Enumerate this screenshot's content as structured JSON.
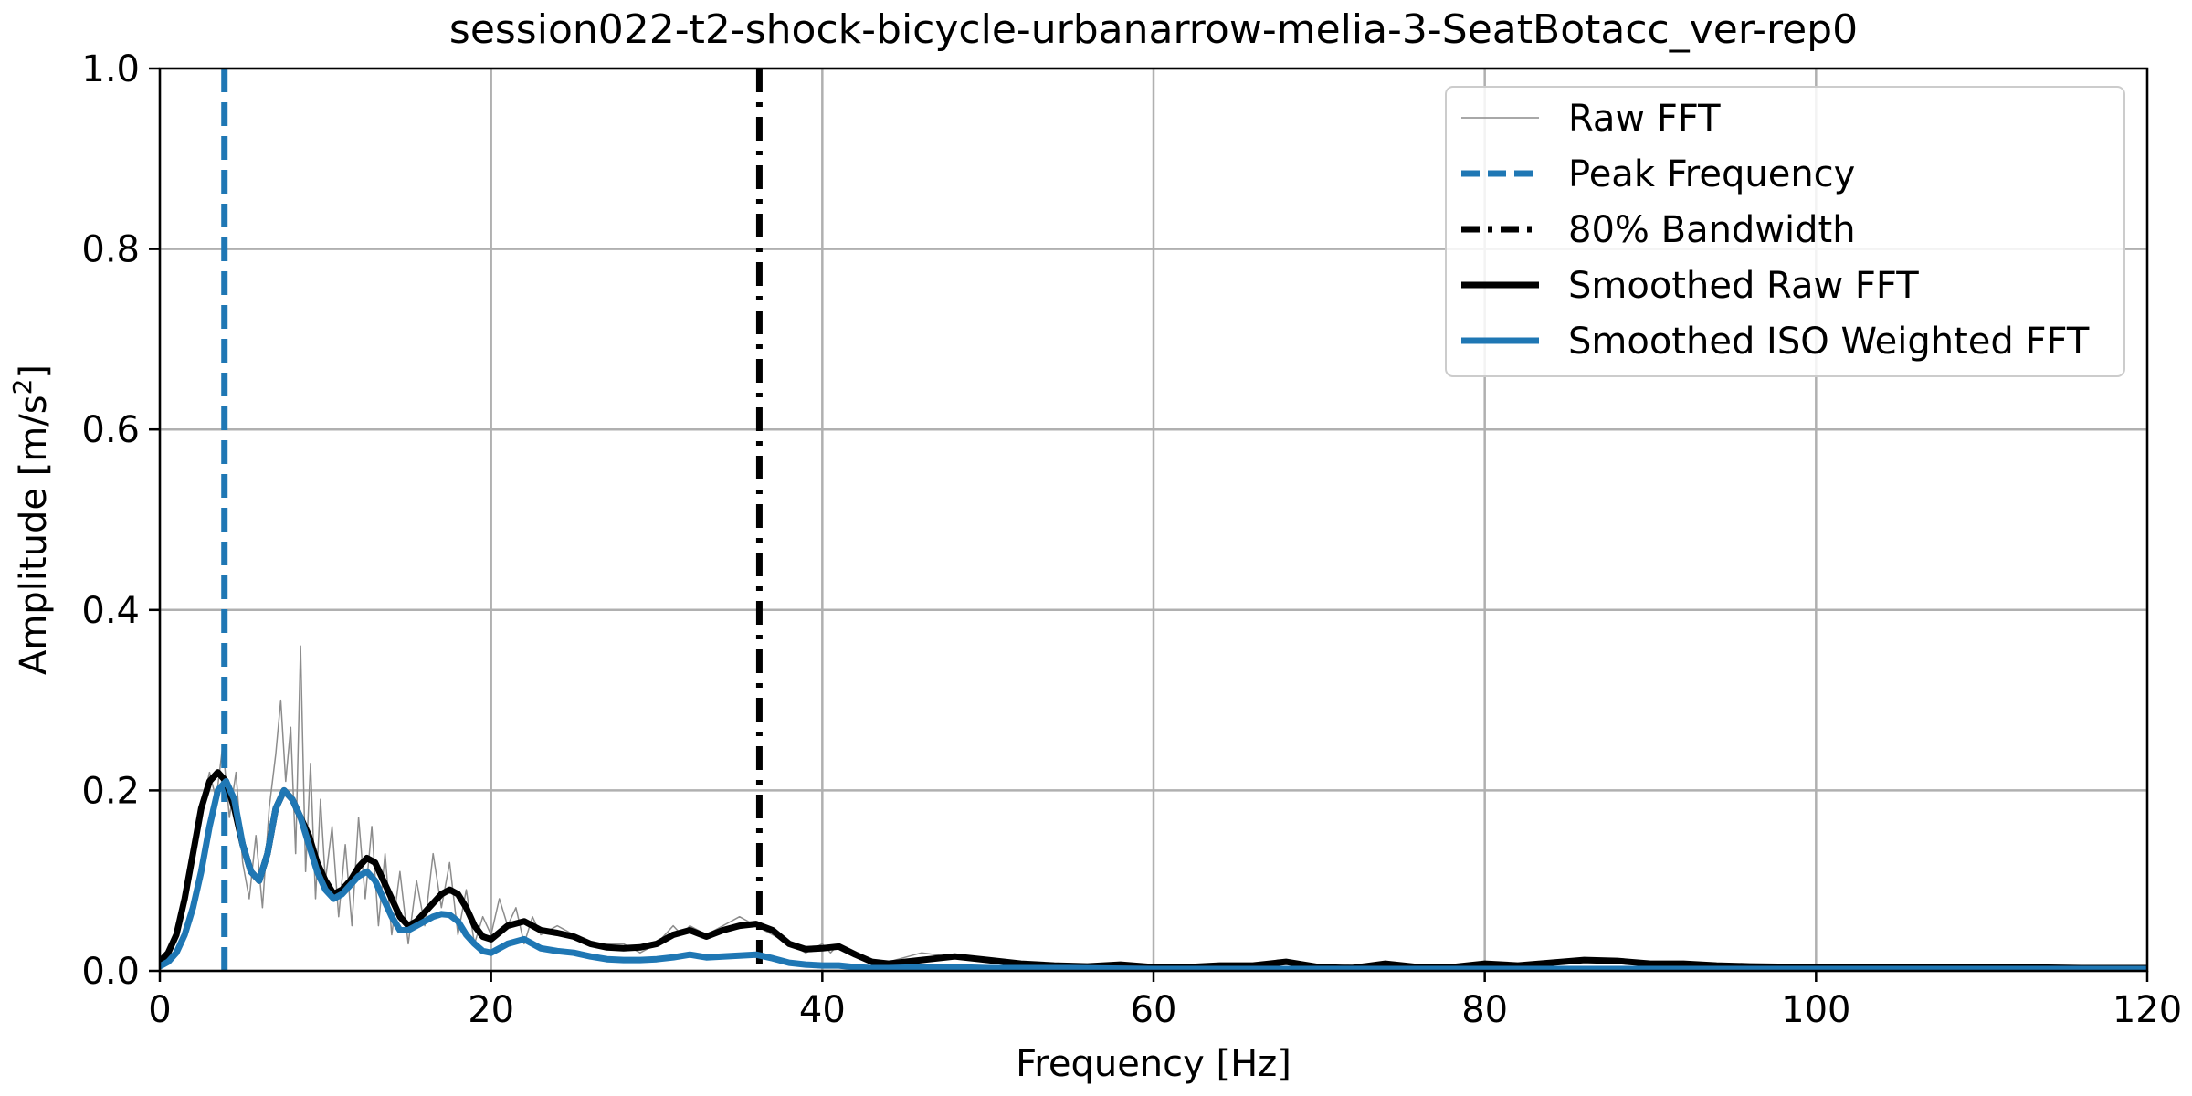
{
  "chart_data": {
    "type": "line",
    "title": "session022-t2-shock-bicycle-urbanarrow-melia-3-SeatBotacc_ver-rep0",
    "xlabel": "Frequency [Hz]",
    "ylabel_main": "Amplitude [m/s",
    "ylabel_sup": "2",
    "ylabel_end": "]",
    "xlim": [
      0,
      120
    ],
    "ylim": [
      0,
      1.0
    ],
    "xticks": [
      0,
      20,
      40,
      60,
      80,
      100,
      120
    ],
    "xtick_labels": [
      "0",
      "20",
      "40",
      "60",
      "80",
      "100",
      "120"
    ],
    "yticks": [
      0.0,
      0.2,
      0.4,
      0.6,
      0.8,
      1.0
    ],
    "ytick_labels": [
      "0.0",
      "0.2",
      "0.4",
      "0.6",
      "0.8",
      "1.0"
    ],
    "grid": true,
    "legend_position": "top-right",
    "peak_frequency": 3.9,
    "bandwidth_80": 36.2,
    "colors": {
      "raw": "#8c8c8c",
      "peak": "#1f77b4",
      "bandwidth": "#000000",
      "smoothed_raw": "#000000",
      "smoothed_iso": "#1f77b4"
    },
    "series": [
      {
        "name": "Raw FFT",
        "x": [
          0,
          0.6,
          1.2,
          1.8,
          2.4,
          3.0,
          3.4,
          3.8,
          4.2,
          4.6,
          5.0,
          5.4,
          5.8,
          6.2,
          6.6,
          7.0,
          7.3,
          7.6,
          7.9,
          8.2,
          8.5,
          8.8,
          9.1,
          9.4,
          9.7,
          10.0,
          10.4,
          10.8,
          11.2,
          11.6,
          12.0,
          12.4,
          12.8,
          13.2,
          13.6,
          14.0,
          14.5,
          15.0,
          15.5,
          16.0,
          16.5,
          17.0,
          17.5,
          18.0,
          18.5,
          19.0,
          19.5,
          20.0,
          20.5,
          21.0,
          21.5,
          22.0,
          22.5,
          23.0,
          24.0,
          25.0,
          26.0,
          27.0,
          28.0,
          29.0,
          30.0,
          31.0,
          31.5,
          32.0,
          33.0,
          34.0,
          35.0,
          36.0,
          37.0,
          38.0,
          39.0,
          40.0,
          40.5,
          41.0,
          42.0,
          43.0,
          44.0,
          45.0,
          46.0,
          48.0,
          50.0,
          52.0,
          55.0,
          58.0,
          60.0,
          63.0,
          66.0,
          68.0,
          70.0,
          73.0,
          76.0,
          80.0,
          84.0,
          86.0,
          90.0,
          92.0,
          96.0,
          100.0,
          105.0,
          110.0,
          115.0,
          120.0
        ],
        "y": [
          0.01,
          0.02,
          0.05,
          0.1,
          0.17,
          0.22,
          0.19,
          0.25,
          0.17,
          0.22,
          0.12,
          0.08,
          0.15,
          0.07,
          0.18,
          0.24,
          0.3,
          0.21,
          0.27,
          0.13,
          0.36,
          0.11,
          0.23,
          0.08,
          0.19,
          0.1,
          0.16,
          0.06,
          0.14,
          0.05,
          0.17,
          0.08,
          0.16,
          0.05,
          0.13,
          0.04,
          0.11,
          0.03,
          0.1,
          0.05,
          0.13,
          0.07,
          0.12,
          0.04,
          0.09,
          0.03,
          0.06,
          0.04,
          0.08,
          0.05,
          0.07,
          0.03,
          0.06,
          0.04,
          0.05,
          0.04,
          0.03,
          0.03,
          0.03,
          0.02,
          0.03,
          0.05,
          0.04,
          0.05,
          0.04,
          0.05,
          0.06,
          0.05,
          0.04,
          0.03,
          0.02,
          0.03,
          0.02,
          0.03,
          0.02,
          0.01,
          0.01,
          0.015,
          0.02,
          0.015,
          0.01,
          0.008,
          0.008,
          0.005,
          0.005,
          0.006,
          0.007,
          0.01,
          0.004,
          0.008,
          0.004,
          0.008,
          0.007,
          0.01,
          0.008,
          0.007,
          0.005,
          0.004,
          0.004,
          0.004,
          0.003,
          0.003
        ]
      },
      {
        "name": "Smoothed Raw FFT",
        "x": [
          0,
          0.5,
          1,
          1.5,
          2,
          2.5,
          3,
          3.5,
          4,
          4.5,
          5,
          5.5,
          6,
          6.5,
          7,
          7.5,
          8,
          8.5,
          9,
          9.5,
          10,
          10.5,
          11,
          11.5,
          12,
          12.5,
          13,
          13.5,
          14,
          14.5,
          15,
          15.5,
          16,
          16.5,
          17,
          17.5,
          18,
          18.5,
          19,
          19.5,
          20,
          21,
          22,
          23,
          24,
          25,
          26,
          27,
          28,
          29,
          30,
          31,
          32,
          33,
          34,
          35,
          36,
          37,
          38,
          39,
          40,
          41,
          42,
          43,
          44,
          46,
          48,
          50,
          52,
          54,
          56,
          58,
          60,
          62,
          64,
          66,
          68,
          70,
          72,
          74,
          76,
          78,
          80,
          82,
          84,
          86,
          88,
          90,
          92,
          94,
          96,
          100,
          104,
          108,
          112,
          116,
          120
        ],
        "y": [
          0.01,
          0.02,
          0.04,
          0.08,
          0.13,
          0.18,
          0.21,
          0.22,
          0.21,
          0.18,
          0.14,
          0.11,
          0.1,
          0.13,
          0.18,
          0.2,
          0.19,
          0.17,
          0.15,
          0.12,
          0.1,
          0.085,
          0.09,
          0.1,
          0.115,
          0.125,
          0.12,
          0.1,
          0.08,
          0.06,
          0.05,
          0.055,
          0.065,
          0.075,
          0.085,
          0.09,
          0.085,
          0.07,
          0.05,
          0.038,
          0.035,
          0.05,
          0.055,
          0.045,
          0.042,
          0.038,
          0.03,
          0.026,
          0.025,
          0.026,
          0.03,
          0.04,
          0.045,
          0.038,
          0.045,
          0.05,
          0.052,
          0.045,
          0.03,
          0.024,
          0.025,
          0.027,
          0.018,
          0.01,
          0.008,
          0.012,
          0.016,
          0.012,
          0.008,
          0.006,
          0.005,
          0.007,
          0.004,
          0.004,
          0.006,
          0.006,
          0.01,
          0.004,
          0.003,
          0.008,
          0.004,
          0.004,
          0.008,
          0.006,
          0.009,
          0.012,
          0.011,
          0.008,
          0.008,
          0.006,
          0.005,
          0.004,
          0.004,
          0.004,
          0.004,
          0.003,
          0.003
        ]
      },
      {
        "name": "Smoothed ISO Weighted FFT",
        "x": [
          0,
          0.5,
          1,
          1.5,
          2,
          2.5,
          3,
          3.5,
          4,
          4.5,
          5,
          5.5,
          6,
          6.5,
          7,
          7.5,
          8,
          8.5,
          9,
          9.5,
          10,
          10.5,
          11,
          11.5,
          12,
          12.5,
          13,
          13.5,
          14,
          14.5,
          15,
          15.5,
          16,
          16.5,
          17,
          17.5,
          18,
          18.5,
          19,
          19.5,
          20,
          21,
          22,
          23,
          24,
          25,
          26,
          27,
          28,
          29,
          30,
          31,
          32,
          33,
          34,
          35,
          36,
          37,
          38,
          39,
          40,
          41,
          42,
          43,
          44,
          46,
          48,
          50,
          55,
          60,
          65,
          70,
          80,
          90,
          100,
          110,
          120
        ],
        "y": [
          0.005,
          0.01,
          0.02,
          0.04,
          0.07,
          0.11,
          0.16,
          0.2,
          0.21,
          0.19,
          0.14,
          0.11,
          0.1,
          0.13,
          0.18,
          0.2,
          0.19,
          0.17,
          0.14,
          0.11,
          0.09,
          0.08,
          0.085,
          0.095,
          0.105,
          0.11,
          0.1,
          0.08,
          0.06,
          0.045,
          0.045,
          0.05,
          0.055,
          0.06,
          0.063,
          0.062,
          0.055,
          0.04,
          0.03,
          0.022,
          0.02,
          0.03,
          0.035,
          0.025,
          0.022,
          0.02,
          0.016,
          0.013,
          0.012,
          0.012,
          0.013,
          0.015,
          0.018,
          0.015,
          0.016,
          0.017,
          0.018,
          0.014,
          0.009,
          0.007,
          0.006,
          0.006,
          0.004,
          0.003,
          0.003,
          0.004,
          0.004,
          0.003,
          0.003,
          0.002,
          0.002,
          0.002,
          0.002,
          0.002,
          0.002,
          0.002,
          0.002
        ]
      }
    ],
    "legend": [
      {
        "label": "Raw FFT",
        "style": "raw"
      },
      {
        "label": "Peak Frequency",
        "style": "peak"
      },
      {
        "label": "80% Bandwidth",
        "style": "bandwidth"
      },
      {
        "label": "Smoothed Raw FFT",
        "style": "smoothed_raw"
      },
      {
        "label": "Smoothed ISO Weighted FFT",
        "style": "smoothed_iso"
      }
    ]
  }
}
